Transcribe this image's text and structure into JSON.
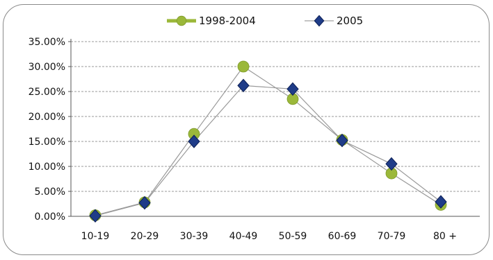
{
  "chart_data": {
    "type": "line",
    "categories": [
      "10-19",
      "20-29",
      "30-39",
      "40-49",
      "50-59",
      "60-69",
      "70-79",
      "80 +"
    ],
    "series": [
      {
        "name": "1998-2004",
        "marker": "circle",
        "color": "#9bb83a",
        "line_color": "#9a9a9a",
        "values": [
          0.2,
          2.8,
          16.5,
          30.0,
          23.5,
          15.3,
          8.6,
          2.3
        ]
      },
      {
        "name": "2005",
        "marker": "diamond",
        "color": "#1f3c88",
        "line_color": "#9a9a9a",
        "values": [
          0.1,
          2.7,
          15.0,
          26.2,
          25.5,
          15.2,
          10.5,
          2.9
        ]
      }
    ],
    "y_ticks": [
      "0.00%",
      "5.00%",
      "10.00%",
      "15.00%",
      "20.00%",
      "25.00%",
      "30.00%",
      "35.00%"
    ],
    "ylim": [
      0,
      35
    ],
    "y_unit": "percent",
    "grid": true,
    "legend_position": "top-center",
    "title": "",
    "xlabel": "",
    "ylabel": ""
  }
}
